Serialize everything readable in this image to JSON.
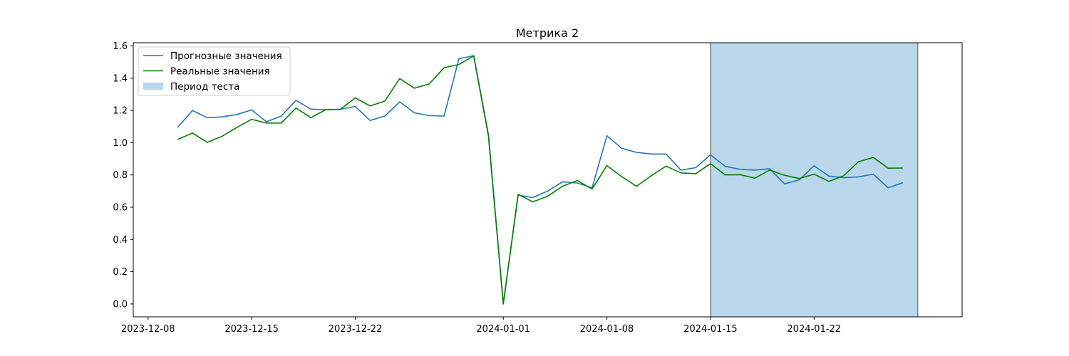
{
  "chart_data": {
    "type": "line",
    "title": "Метрика 2",
    "xlabel": "",
    "ylabel": "",
    "x_dates": [
      "2023-12-10",
      "2023-12-11",
      "2023-12-12",
      "2023-12-13",
      "2023-12-14",
      "2023-12-15",
      "2023-12-16",
      "2023-12-17",
      "2023-12-18",
      "2023-12-19",
      "2023-12-20",
      "2023-12-21",
      "2023-12-22",
      "2023-12-23",
      "2023-12-24",
      "2023-12-25",
      "2023-12-26",
      "2023-12-27",
      "2023-12-28",
      "2023-12-29",
      "2023-12-30",
      "2023-12-31",
      "2024-01-01",
      "2024-01-02",
      "2024-01-03",
      "2024-01-04",
      "2024-01-05",
      "2024-01-06",
      "2024-01-07",
      "2024-01-08",
      "2024-01-09",
      "2024-01-10",
      "2024-01-11",
      "2024-01-12",
      "2024-01-13",
      "2024-01-14",
      "2024-01-15",
      "2024-01-16",
      "2024-01-17",
      "2024-01-18",
      "2024-01-19",
      "2024-01-20",
      "2024-01-21",
      "2024-01-22",
      "2024-01-23",
      "2024-01-24",
      "2024-01-25",
      "2024-01-26",
      "2024-01-27",
      "2024-01-28",
      "2024-01-29"
    ],
    "series": [
      {
        "name": "Прогнозные значения",
        "color": "#1f77b4",
        "values": [
          1.095,
          1.2,
          1.155,
          1.16,
          1.175,
          1.203,
          1.13,
          1.165,
          1.263,
          1.208,
          1.204,
          1.207,
          1.225,
          1.138,
          1.165,
          1.253,
          1.185,
          1.168,
          1.165,
          1.52,
          1.54,
          1.05,
          0.0,
          0.675,
          0.66,
          0.7,
          0.757,
          0.75,
          0.72,
          1.043,
          0.965,
          0.94,
          0.93,
          0.93,
          0.83,
          0.845,
          0.925,
          0.853,
          0.835,
          0.83,
          0.838,
          0.745,
          0.77,
          0.857,
          0.793,
          0.783,
          0.788,
          0.805,
          0.72,
          0.752,
          null
        ]
      },
      {
        "name": "Реальные значения",
        "color": "#008000",
        "values": [
          1.02,
          1.06,
          1.002,
          1.04,
          1.095,
          1.145,
          1.122,
          1.122,
          1.215,
          1.155,
          1.205,
          1.207,
          1.278,
          1.228,
          1.258,
          1.398,
          1.338,
          1.365,
          1.465,
          1.485,
          1.538,
          1.04,
          0.0,
          0.68,
          0.633,
          0.668,
          0.73,
          0.765,
          0.713,
          0.858,
          0.79,
          0.73,
          0.795,
          0.855,
          0.813,
          0.808,
          0.87,
          0.8,
          0.802,
          0.78,
          0.83,
          0.798,
          0.778,
          0.805,
          0.76,
          0.795,
          0.882,
          0.908,
          0.842,
          0.843,
          null
        ]
      }
    ],
    "test_period": {
      "name": "Период теста",
      "start": "2024-01-15",
      "end": "2024-01-29",
      "color": "#bad6ea"
    },
    "ylim": [
      -0.08,
      1.62
    ],
    "yticks": [
      "0.0",
      "0.2",
      "0.4",
      "0.6",
      "0.8",
      "1.0",
      "1.2",
      "1.4",
      "1.6"
    ],
    "xticks": [
      "2023-12-08",
      "2023-12-15",
      "2023-12-22",
      "2024-01-01",
      "2024-01-08",
      "2024-01-15",
      "2024-01-22"
    ],
    "xlim": [
      "2023-12-07",
      "2024-02-01"
    ],
    "legend": "top-left",
    "grid": false
  }
}
